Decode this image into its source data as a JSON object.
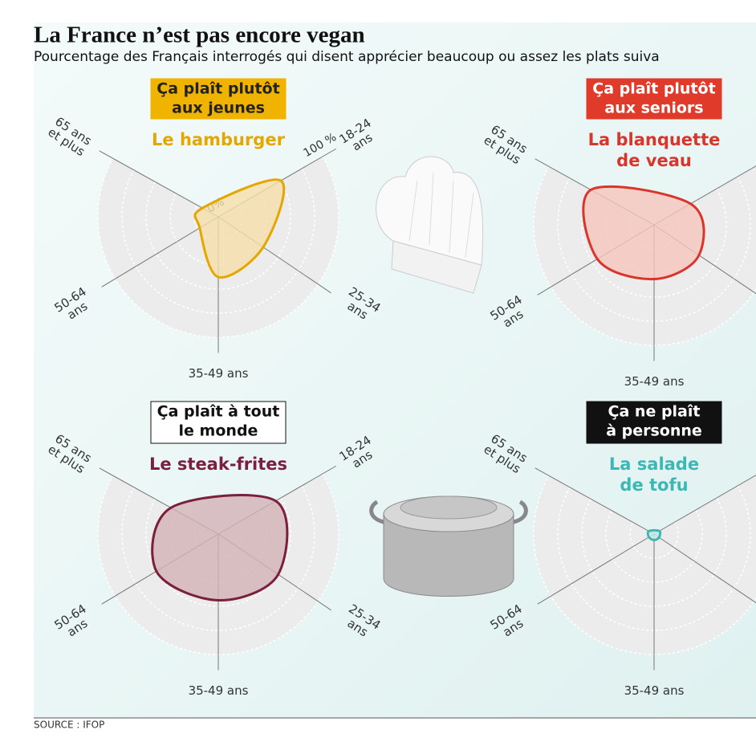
{
  "header": {
    "title": "La France n’est pas encore vegan",
    "subtitle": "Pourcentage des Français interrogés qui disent apprécier beaucoup ou assez les plats suiva"
  },
  "source": "SOURCE : IFOP",
  "chart_data": [
    {
      "type": "radar",
      "badge": [
        "Ça plaît plutôt",
        "aux jeunes"
      ],
      "badge_color": "#f0b400",
      "badge_text_color": "#222222",
      "title": [
        "Le hamburger"
      ],
      "color": "#e3a700",
      "fill": "#f6deaa",
      "categories": [
        [
          "18-24",
          "ans"
        ],
        [
          "25-34",
          "ans"
        ],
        [
          "35-49 ans"
        ],
        [
          "50-64",
          "ans"
        ],
        [
          "65 ans",
          "et plus"
        ]
      ],
      "values": [
        60,
        45,
        50,
        18,
        15
      ],
      "rlim": [
        0,
        100
      ],
      "rgrid": [
        20,
        40,
        60,
        80,
        100
      ],
      "rtick_labels": [
        {
          "value": 0,
          "label": "0%"
        },
        {
          "value": 100,
          "label": "100 %"
        }
      ]
    },
    {
      "type": "radar",
      "badge": [
        "Ça plaît plutôt",
        "aux seniors"
      ],
      "badge_color": "#e03a2a",
      "badge_text_color": "#ffffff",
      "title": [
        "La blanquette",
        "de veau"
      ],
      "color": "#d9352a",
      "fill": "#f5c6bd",
      "categories": [
        null,
        null,
        [
          "35-49 ans"
        ],
        [
          "50-64",
          "ans"
        ],
        [
          "65 ans",
          "et plus"
        ]
      ],
      "values": [
        35,
        45,
        45,
        55,
        60
      ],
      "rlim": [
        0,
        100
      ],
      "rgrid": [
        20,
        40,
        60,
        80,
        100
      ]
    },
    {
      "type": "radar",
      "badge": [
        "Ça plaît à tout",
        "le monde"
      ],
      "badge_color": "#ffffff",
      "badge_text_color": "#111111",
      "title": [
        "Le steak-frites"
      ],
      "color": "#7a1f3d",
      "fill": "#d3b1b7",
      "categories": [
        [
          "18-24",
          "ans"
        ],
        [
          "25-34",
          "ans"
        ],
        [
          "35-49 ans"
        ],
        [
          "50-64",
          "ans"
        ],
        [
          "65 ans",
          "et plus"
        ]
      ],
      "values": [
        55,
        60,
        55,
        60,
        45
      ],
      "rlim": [
        0,
        100
      ],
      "rgrid": [
        20,
        40,
        60,
        80,
        100
      ]
    },
    {
      "type": "radar",
      "badge": [
        "Ça ne plaît",
        "à personne"
      ],
      "badge_color": "#111111",
      "badge_text_color": "#ffffff",
      "title": [
        "La salade",
        "de tofu"
      ],
      "color": "#3cb8b4",
      "fill": "#c9ecea",
      "categories": [
        null,
        null,
        [
          "35-49 ans"
        ],
        [
          "50-64",
          "ans"
        ],
        [
          "65 ans",
          "et plus"
        ]
      ],
      "values": [
        5,
        5,
        5,
        5,
        5
      ],
      "rlim": [
        0,
        100
      ],
      "rgrid": [
        20,
        40,
        60,
        80,
        100
      ]
    }
  ]
}
